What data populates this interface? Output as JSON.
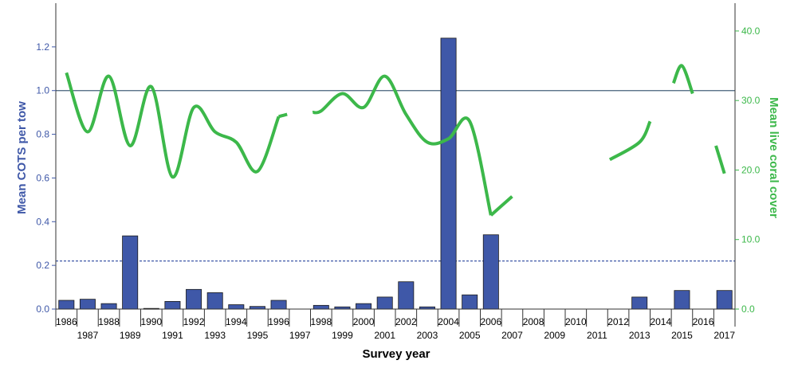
{
  "chart_data": {
    "type": "bar",
    "xlabel": "Survey year",
    "ylabel_left": "Mean COTS per tow",
    "ylabel_right": "Mean live coral cover",
    "years": [
      "1986",
      "1987",
      "1988",
      "1989",
      "1990",
      "1991",
      "1992",
      "1993",
      "1994",
      "1995",
      "1996",
      "1997",
      "1998",
      "1999",
      "2000",
      "2001",
      "2002",
      "2003",
      "2004",
      "2005",
      "2006",
      "2007",
      "2008",
      "2009",
      "2010",
      "2011",
      "2012",
      "2013",
      "2014",
      "2015",
      "2016",
      "2017"
    ],
    "cots_values": [
      0.04,
      0.045,
      0.025,
      0.335,
      0.003,
      0.035,
      0.09,
      0.075,
      0.02,
      0.012,
      0.04,
      null,
      0.017,
      0.01,
      0.025,
      0.055,
      0.125,
      0.01,
      1.24,
      0.065,
      0.34,
      null,
      null,
      null,
      null,
      null,
      null,
      0.055,
      null,
      0.085,
      null,
      0.085
    ],
    "coral_cover": [
      34.0,
      25.5,
      33.5,
      23.5,
      32.0,
      19.0,
      29.0,
      25.5,
      24.0,
      19.8,
      27.7,
      28.0,
      28.5,
      31.0,
      29.0,
      33.5,
      28.0,
      24.0,
      24.5,
      27.0,
      13.5,
      15.0,
      16.2,
      null,
      null,
      null,
      21.5,
      22.7,
      24.0,
      27.0,
      32.5,
      35.0,
      31.0,
      23.5,
      19.5
    ],
    "coral_line_segments": [
      {
        "x": [
          1986,
          1987,
          1988,
          1989,
          1990,
          1991,
          1992,
          1993,
          1994,
          1995,
          1996
        ],
        "y": [
          34.0,
          25.5,
          33.5,
          23.5,
          32.0,
          19.0,
          29.0,
          25.5,
          24.0,
          19.8,
          27.7
        ]
      },
      {
        "x": [
          1996,
          1996.4
        ],
        "y": [
          27.7,
          28.0
        ]
      },
      {
        "x": [
          1997.6,
          1998,
          1999,
          2000,
          2001,
          2002,
          2003,
          2004,
          2005,
          2006
        ],
        "y": [
          28.3,
          28.5,
          31.0,
          29.0,
          33.5,
          28.0,
          24.0,
          24.5,
          27.0,
          13.5
        ]
      },
      {
        "x": [
          2006,
          2007
        ],
        "y": [
          13.5,
          16.2
        ]
      },
      {
        "x": [
          2011.6,
          2013,
          2013.5
        ],
        "y": [
          21.5,
          24.0,
          27.0
        ]
      },
      {
        "x": [
          2014.6,
          2015,
          2015.5
        ],
        "y": [
          32.5,
          35.0,
          31.0
        ]
      },
      {
        "x": [
          2016.6,
          2017
        ],
        "y": [
          23.5,
          19.5
        ]
      }
    ],
    "ylim_left": [
      0,
      1.4
    ],
    "ylim_right": [
      0,
      44
    ],
    "yticks_left": [
      "0.0",
      "0.2",
      "0.4",
      "0.6",
      "0.8",
      "1.0",
      "1.2"
    ],
    "yticks_right": [
      "0.0",
      "10.0",
      "20.0",
      "30.0",
      "40.0"
    ],
    "ref_line_solid": 1.0,
    "ref_line_dotted": 0.22,
    "colors": {
      "bars": "#3f58a8",
      "bar_stroke": "#1a1a1a",
      "coral_line": "#3cb84a",
      "left_axis": "#3f58a8",
      "right_axis": "#3cb84a",
      "ref_line": "#44607a"
    }
  }
}
